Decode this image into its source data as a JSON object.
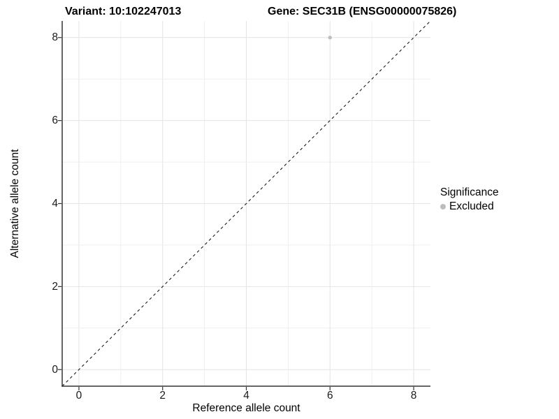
{
  "figure": {
    "title_left": "Variant: 10:102247013",
    "title_right": "Gene: SEC31B (ENSG00000075826)"
  },
  "chart_data": {
    "type": "scatter",
    "title": "Variant: 10:102247013   Gene: SEC31B (ENSG00000075826)",
    "xlabel": "Reference allele count",
    "ylabel": "Alternative allele count",
    "xlim": [
      -0.4,
      8.4
    ],
    "ylim": [
      -0.4,
      8.4
    ],
    "x_ticks": [
      0,
      2,
      4,
      6,
      8
    ],
    "y_ticks": [
      0,
      2,
      4,
      6,
      8
    ],
    "grid": {
      "visible": true,
      "lines_at_every_integer": true,
      "major_every": 2
    },
    "series": [
      {
        "name": "Excluded",
        "marker": "circle",
        "color": "#bdbdbd",
        "points": [
          [
            6,
            8
          ]
        ]
      }
    ],
    "reference_line": {
      "kind": "identity",
      "slope": 1,
      "intercept": 0,
      "style": "dashed",
      "color": "#1a1a1a"
    },
    "legend": {
      "title": "Significance",
      "position": "right",
      "items": [
        {
          "label": "Excluded",
          "color": "#bdbdbd",
          "marker": "circle"
        }
      ]
    },
    "colors": {
      "background": "#ffffff",
      "grid_major": "#e4e4e4",
      "grid_minor": "#efefef",
      "axis_line": "#333333",
      "tick_mark": "#333333",
      "tick_text": "#1a1a1a",
      "point": "#bdbdbd"
    }
  }
}
